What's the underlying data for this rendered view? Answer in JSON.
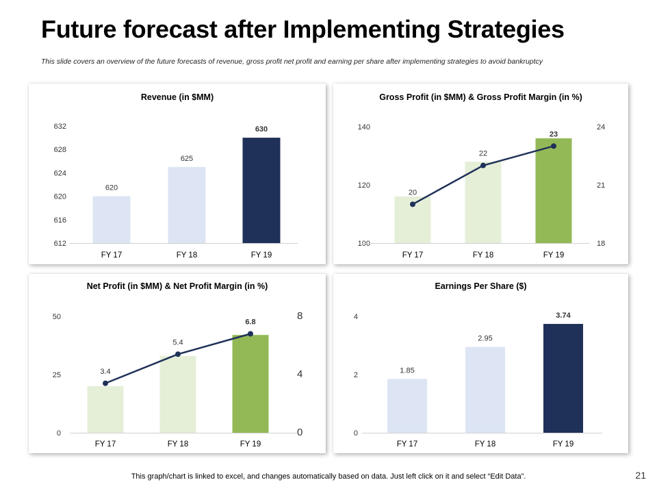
{
  "header": {
    "title": "Future forecast after Implementing Strategies",
    "subtitle": "This slide covers an overview of the future forecasts of revenue, gross profit net profit and earning per share after implementing strategies to avoid bankruptcy"
  },
  "footer": {
    "note": "This graph/chart is linked to excel, and changes automatically based on data. Just left click on it and select “Edit Data”.",
    "page_number": "21"
  },
  "colors": {
    "navy": "#1f3158",
    "light_blue": "#dde5f4",
    "light_green": "#e5efd8",
    "green": "#93b957",
    "line": "#1f3158"
  },
  "chart_data": [
    {
      "type": "bar",
      "title": "Revenue (in $MM)",
      "categories": [
        "FY 17",
        "FY 18",
        "FY 19"
      ],
      "values": [
        620,
        625,
        630
      ],
      "labels": [
        "620",
        "625",
        "630"
      ],
      "ylim": [
        612,
        632
      ],
      "yticks": [
        "612",
        "616",
        "620",
        "624",
        "628",
        "632"
      ],
      "bar_colors": [
        "#dde5f4",
        "#dde5f4",
        "#1f3158"
      ],
      "bold_last_label": true
    },
    {
      "type": "bar+line",
      "title": "Gross Profit (in $MM) & Gross Profit Margin (in %)",
      "categories": [
        "FY 17",
        "FY 18",
        "FY 19"
      ],
      "bar_values": [
        116,
        128,
        136
      ],
      "ylim": [
        100,
        140
      ],
      "yticks": [
        "100",
        "120",
        "140"
      ],
      "line_values": [
        20,
        22,
        23
      ],
      "labels": [
        "20",
        "22",
        "23"
      ],
      "y2lim": [
        18,
        24
      ],
      "y2ticks": [
        "18",
        "21",
        "24"
      ],
      "bar_colors": [
        "#e5efd8",
        "#e5efd8",
        "#93b957"
      ],
      "bold_last_label": true
    },
    {
      "type": "bar+line",
      "title": "Net Profit (in $MM) & Net Profit Margin (in %)",
      "categories": [
        "FY 17",
        "FY 18",
        "FY 19"
      ],
      "bar_values": [
        20,
        33,
        42
      ],
      "ylim": [
        0,
        50
      ],
      "yticks": [
        "0",
        "25",
        "50"
      ],
      "line_values": [
        3.4,
        5.4,
        6.8
      ],
      "labels": [
        "3.4",
        "5.4",
        "6.8"
      ],
      "y2lim": [
        0,
        8
      ],
      "y2ticks": [
        "0",
        "4",
        "8"
      ],
      "bar_colors": [
        "#e5efd8",
        "#e5efd8",
        "#93b957"
      ],
      "bold_last_label": true
    },
    {
      "type": "bar",
      "title": "Earnings Per Share ($)",
      "categories": [
        "FY 17",
        "FY 18",
        "FY 19"
      ],
      "values": [
        1.85,
        2.95,
        3.74
      ],
      "labels": [
        "1.85",
        "2.95",
        "3.74"
      ],
      "ylim": [
        0,
        4
      ],
      "yticks": [
        "0",
        "2",
        "4"
      ],
      "bar_colors": [
        "#dde5f4",
        "#dde5f4",
        "#1f3158"
      ],
      "bold_last_label": true
    }
  ]
}
